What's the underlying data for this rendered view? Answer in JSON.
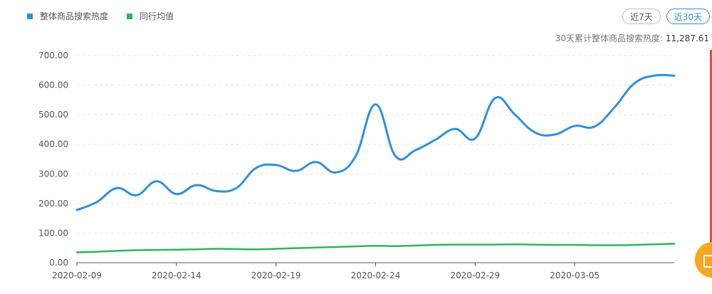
{
  "legend": [
    {
      "label": "整体商品搜索热度",
      "color": "#2f8fdc"
    },
    {
      "label": "同行均值",
      "color": "#2fb55b"
    }
  ],
  "toggles": [
    {
      "label": "近7天",
      "active": false
    },
    {
      "label": "近30天",
      "active": true
    }
  ],
  "summary": {
    "label": "30天累计整体商品搜索热度:",
    "value": "11,287.61"
  },
  "float_button": {
    "icon": "document-icon"
  },
  "chart_data": {
    "type": "line",
    "title": "",
    "xlabel": "",
    "ylabel": "",
    "ylim": [
      0,
      700
    ],
    "yticks": [
      "0.00",
      "100.00",
      "200.00",
      "300.00",
      "400.00",
      "500.00",
      "600.00",
      "700.00"
    ],
    "x": [
      "2020-02-09",
      "2020-02-10",
      "2020-02-11",
      "2020-02-12",
      "2020-02-13",
      "2020-02-14",
      "2020-02-15",
      "2020-02-16",
      "2020-02-17",
      "2020-02-18",
      "2020-02-19",
      "2020-02-20",
      "2020-02-21",
      "2020-02-22",
      "2020-02-23",
      "2020-02-24",
      "2020-02-25",
      "2020-02-26",
      "2020-02-27",
      "2020-02-28",
      "2020-02-29",
      "2020-03-01",
      "2020-03-02",
      "2020-03-03",
      "2020-03-04",
      "2020-03-05",
      "2020-03-06",
      "2020-03-07",
      "2020-03-08",
      "2020-03-09",
      "2020-03-10"
    ],
    "xtick_labels": [
      "2020-02-09",
      "2020-02-14",
      "2020-02-19",
      "2020-02-24",
      "2020-02-29",
      "2020-03-05"
    ],
    "series": [
      {
        "name": "整体商品搜索热度",
        "color": "#2f8fdc",
        "values": [
          178,
          205,
          252,
          228,
          275,
          232,
          262,
          242,
          252,
          320,
          330,
          310,
          340,
          305,
          360,
          535,
          360,
          380,
          415,
          452,
          420,
          556,
          500,
          440,
          433,
          462,
          460,
          525,
          606,
          632,
          632
        ]
      },
      {
        "name": "同行均值",
        "color": "#2fb55b",
        "values": [
          35,
          37,
          40,
          42,
          43,
          44,
          45,
          47,
          46,
          45,
          47,
          49,
          51,
          53,
          55,
          57,
          56,
          58,
          60,
          61,
          61,
          61,
          62,
          61,
          60,
          60,
          59,
          59,
          60,
          62,
          64
        ]
      }
    ],
    "grid": true,
    "legend_position": "top-left"
  }
}
